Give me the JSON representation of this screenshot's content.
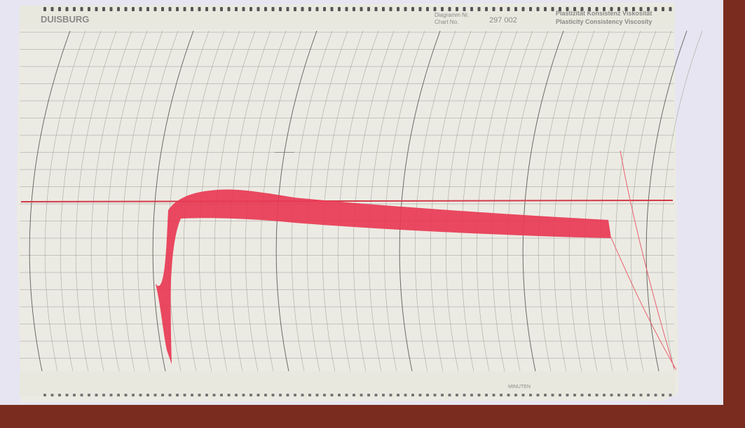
{
  "header": {
    "brand": "DUISBURG",
    "diagram_label": "Diagramm Nr.",
    "chart_label": "Chart No.",
    "number": "297 002",
    "properties_de": "Plastizität Konsistenz Viskosität",
    "properties_en": "Plasticity Consistency Viscosity"
  },
  "footer": {
    "axis_label": "MINUTEN"
  }
}
